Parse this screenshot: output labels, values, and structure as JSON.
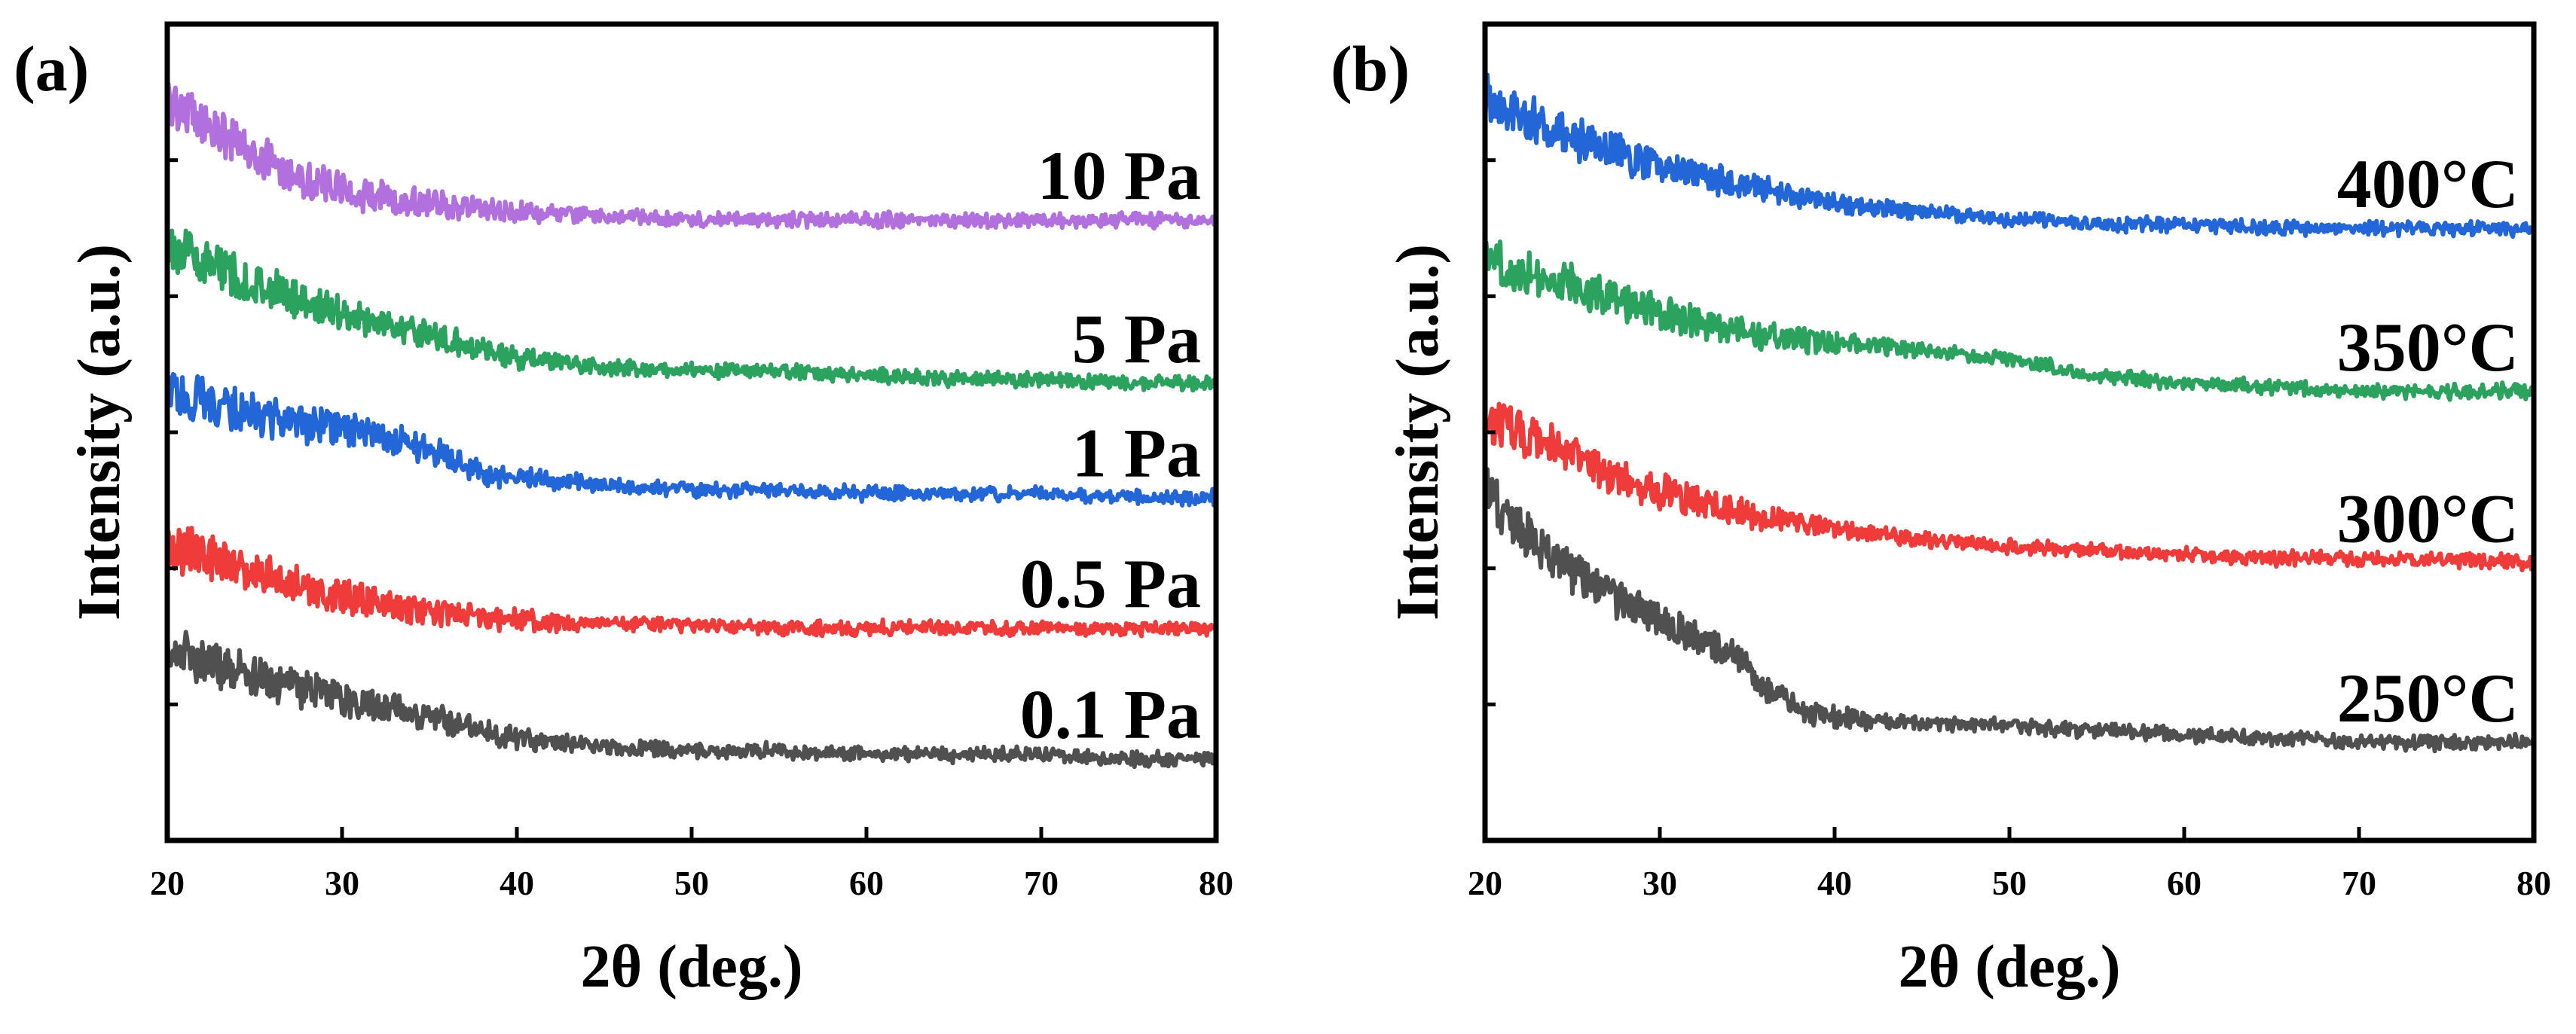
{
  "chart_data": [
    {
      "panel": "(a)",
      "type": "line",
      "xlabel": "2θ (deg.)",
      "ylabel": "Intensity (a.u.)",
      "xlim": [
        20,
        80
      ],
      "ylim": [
        0,
        100
      ],
      "xticks": [
        20,
        30,
        40,
        50,
        60,
        70,
        80
      ],
      "yticks_unlabeled": [],
      "grid": false,
      "legend": "inline labels above each trace at right",
      "series": [
        {
          "name": "10 Pa",
          "color": "#b26fde",
          "x": [
            20,
            22,
            25,
            28,
            31,
            35,
            40,
            45,
            50,
            55,
            60,
            65,
            70,
            75,
            80
          ],
          "y": [
            91,
            88,
            84,
            81,
            79,
            78,
            77,
            76.5,
            76,
            76,
            76,
            76,
            76,
            76,
            76
          ]
        },
        {
          "name": "5 Pa",
          "color": "#2ca25f",
          "x": [
            20,
            22,
            25,
            28,
            31,
            35,
            40,
            45,
            50,
            55,
            60,
            65,
            70,
            75,
            80
          ],
          "y": [
            73,
            71,
            68,
            66,
            64,
            62,
            59,
            58,
            57.5,
            57.5,
            57,
            56.5,
            56.5,
            56,
            56
          ]
        },
        {
          "name": "1 Pa",
          "color": "#2266d8",
          "x": [
            20,
            22,
            25,
            28,
            31,
            35,
            38,
            40,
            45,
            50,
            55,
            60,
            65,
            70,
            75,
            80
          ],
          "y": [
            55,
            54,
            52,
            51,
            50,
            48,
            45,
            44.5,
            43.5,
            43,
            43,
            42.5,
            42.5,
            42.5,
            42,
            42
          ]
        },
        {
          "name": "0.5 Pa",
          "color": "#f03b3b",
          "x": [
            20,
            22,
            25,
            28,
            31,
            35,
            40,
            45,
            50,
            55,
            60,
            65,
            70,
            75,
            80
          ],
          "y": [
            36,
            35,
            33,
            31,
            29.5,
            28,
            27,
            26.5,
            26.5,
            26,
            26,
            26,
            26,
            26,
            26
          ]
        },
        {
          "name": "0.1 Pa",
          "color": "#505050",
          "x": [
            20,
            22,
            25,
            28,
            31,
            35,
            40,
            45,
            50,
            55,
            60,
            65,
            70,
            75,
            80
          ],
          "y": [
            24,
            22,
            20,
            18.5,
            17,
            15,
            12.5,
            11.5,
            11,
            11,
            10.5,
            10.5,
            10.5,
            10,
            10
          ]
        }
      ]
    },
    {
      "panel": "(b)",
      "type": "line",
      "xlabel": "2θ (deg.)",
      "ylabel": "Intensity (a.u.)",
      "xlim": [
        20,
        80
      ],
      "ylim": [
        0,
        100
      ],
      "xticks": [
        20,
        30,
        40,
        50,
        60,
        70,
        80
      ],
      "grid": false,
      "legend": "inline labels above each trace at right",
      "series": [
        {
          "name": "400°C",
          "color": "#2266d8",
          "x": [
            20,
            22,
            25,
            28,
            31,
            35,
            40,
            45,
            50,
            55,
            60,
            65,
            70,
            75,
            80
          ],
          "y": [
            91,
            89,
            86,
            84,
            82,
            80,
            78,
            77,
            76,
            75.5,
            75.5,
            75,
            75,
            75,
            75
          ]
        },
        {
          "name": "350°C",
          "color": "#2ca25f",
          "x": [
            20,
            22,
            25,
            28,
            31,
            35,
            40,
            45,
            50,
            55,
            60,
            65,
            70,
            75,
            80
          ],
          "y": [
            71,
            70,
            68,
            66,
            64,
            62,
            61,
            60,
            59,
            57,
            56,
            55.5,
            55,
            55,
            55
          ]
        },
        {
          "name": "300°C",
          "color": "#f03b3b",
          "x": [
            20,
            22,
            25,
            28,
            31,
            35,
            40,
            45,
            50,
            55,
            60,
            65,
            70,
            75,
            80
          ],
          "y": [
            52,
            50,
            47,
            44,
            42,
            40,
            38,
            37,
            36,
            35.5,
            35,
            34.5,
            34.5,
            34.5,
            34
          ]
        },
        {
          "name": "250°C",
          "color": "#505050",
          "x": [
            20,
            22,
            25,
            28,
            31,
            34,
            36,
            38,
            40,
            43,
            45,
            50,
            55,
            60,
            65,
            70,
            75,
            80
          ],
          "y": [
            43,
            38,
            33,
            29,
            26,
            23,
            19,
            16,
            15,
            14.5,
            14.5,
            14,
            13.5,
            13,
            12.5,
            12,
            12,
            12
          ]
        }
      ]
    }
  ]
}
